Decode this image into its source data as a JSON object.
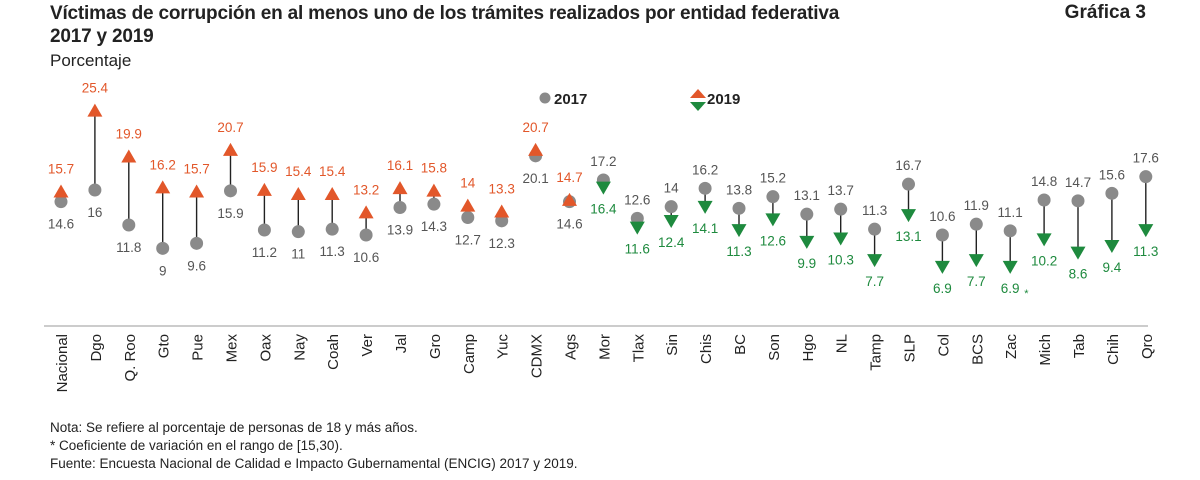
{
  "header": {
    "title_line1": "Víctimas de corrupción en al menos uno de los trámites realizados por entidad federativa",
    "title_line2": "2017 y 2019",
    "grafica_label": "Gráfica 3",
    "subtitle": "Porcentaje"
  },
  "chart_data": {
    "type": "dumbbell",
    "unit": "Porcentaje",
    "categories": [
      "Nacional",
      "Dgo",
      "Q. Roo",
      "Gto",
      "Pue",
      "Mex",
      "Oax",
      "Nay",
      "Coah",
      "Ver",
      "Jal",
      "Gro",
      "Camp",
      "Yuc",
      "CDMX",
      "Ags",
      "Mor",
      "Tlax",
      "Sin",
      "Chis",
      "BC",
      "Son",
      "Hgo",
      "NL",
      "Tamp",
      "SLP",
      "Col",
      "BCS",
      "Zac",
      "Mich",
      "Tab",
      "Chih",
      "Qro"
    ],
    "series": [
      {
        "name": "2017",
        "values": [
          14.6,
          16,
          11.8,
          9,
          9.6,
          15.9,
          11.2,
          11,
          11.3,
          10.6,
          13.9,
          14.3,
          12.7,
          12.3,
          20.1,
          14.6,
          17.2,
          12.6,
          14,
          16.2,
          13.8,
          15.2,
          13.1,
          13.7,
          11.3,
          16.7,
          10.6,
          11.9,
          11.1,
          14.8,
          14.7,
          15.6,
          17.6
        ]
      },
      {
        "name": "2019",
        "values": [
          15.7,
          25.4,
          19.9,
          16.2,
          15.7,
          20.7,
          15.9,
          15.4,
          15.4,
          13.2,
          16.1,
          15.8,
          14,
          13.3,
          20.7,
          14.7,
          16.4,
          11.6,
          12.4,
          14.1,
          11.3,
          12.6,
          9.9,
          10.3,
          7.7,
          13.1,
          6.9,
          7.7,
          6.9,
          10.2,
          8.6,
          9.4,
          11.3
        ]
      }
    ],
    "annotations": [
      {
        "category": "Zac",
        "series": "2019",
        "marker": "*"
      }
    ],
    "colors": {
      "2017": "#8a8a8a",
      "increase": "#e2572a",
      "decrease": "#1e8a3e",
      "line": "#222222"
    },
    "legend": {
      "position": "top-center"
    }
  },
  "notes": {
    "line1": "Nota: Se refiere al porcentaje de personas de 18 y más años.",
    "line2": "* Coeficiente de variación en el rango de [15,30).",
    "source": "Fuente: Encuesta Nacional de Calidad e Impacto Gubernamental (ENCIG) 2017 y 2019."
  }
}
